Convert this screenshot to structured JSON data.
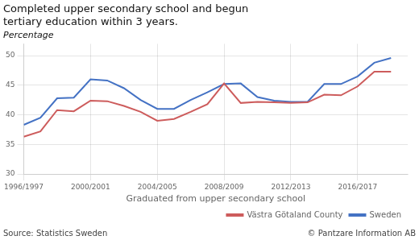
{
  "chart_data": {
    "type": "line",
    "title": [
      "Completed upper secondary school and begun",
      "tertiary education within 3 years."
    ],
    "subtitle": "Percentage",
    "xlabel": "Graduated from upper secondary school",
    "annotations": [
      "Source: Statistics Sweden",
      "© Pantzare Information AB"
    ],
    "x": [
      1996,
      1997,
      1998,
      1999,
      2000,
      2001,
      2002,
      2003,
      2004,
      2005,
      2006,
      2007,
      2008,
      2009,
      2010,
      2011,
      2012,
      2013,
      2014,
      2015,
      2016,
      2017,
      2018
    ],
    "series": [
      {
        "name": "Västra Götaland County",
        "color": "#CD5C5C",
        "values": [
          36.3,
          37.2,
          40.8,
          40.6,
          42.4,
          42.3,
          41.5,
          40.5,
          39.0,
          39.3,
          40.5,
          41.8,
          45.3,
          42.0,
          42.2,
          42.1,
          42.0,
          42.1,
          43.4,
          43.3,
          44.8,
          47.3,
          47.3
        ]
      },
      {
        "name": "Sweden",
        "color": "#4472C4",
        "values": [
          38.3,
          39.5,
          42.8,
          42.9,
          46.0,
          45.8,
          44.5,
          42.5,
          41.0,
          41.0,
          42.5,
          43.8,
          45.2,
          45.3,
          43.0,
          42.4,
          42.2,
          42.2,
          45.2,
          45.2,
          46.5,
          48.8,
          49.6
        ]
      }
    ],
    "xlim": [
      1996,
      2019
    ],
    "xticks": [
      {
        "value": 1996,
        "label": "1996/1997"
      },
      {
        "value": 2000,
        "label": "2000/2001"
      },
      {
        "value": 2004,
        "label": "2004/2005"
      },
      {
        "value": 2008,
        "label": "2008/2009"
      },
      {
        "value": 2012,
        "label": "2012/2013"
      },
      {
        "value": 2016,
        "label": "2016/2017"
      }
    ],
    "ylim": [
      30,
      52
    ],
    "yticks": [
      30,
      35,
      40,
      45,
      50
    ],
    "grid": true,
    "legend": "bottom"
  }
}
